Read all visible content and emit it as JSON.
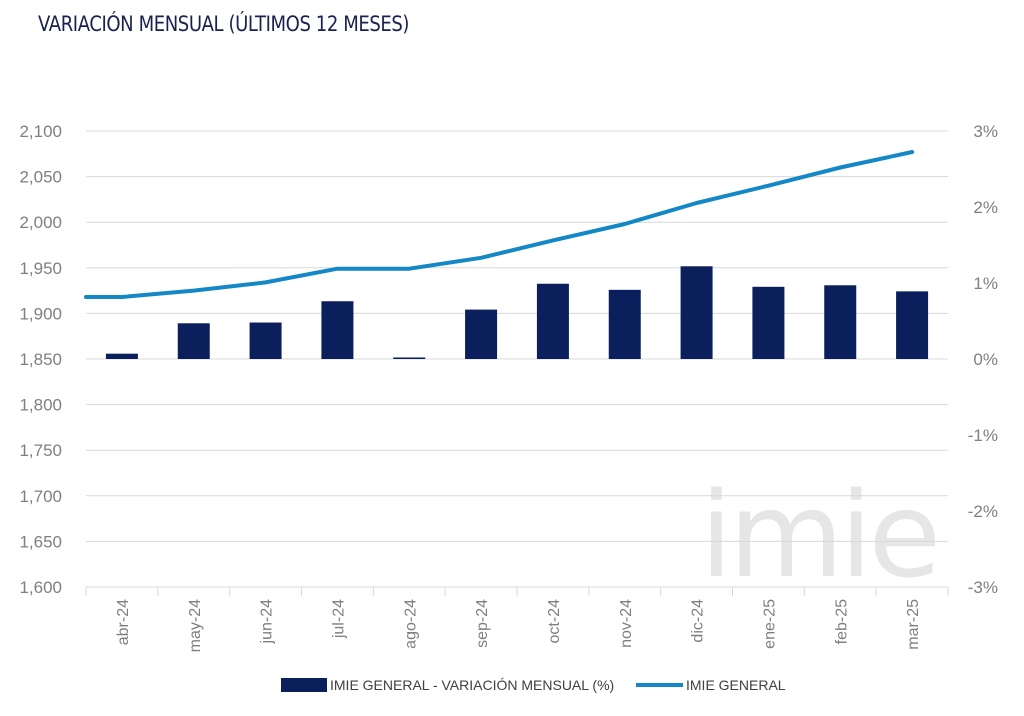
{
  "title": "VARIACIÓN MENSUAL (ÚLTIMOS 12 MESES)",
  "watermark_text": "imie",
  "colors": {
    "bar": "#0b1f5c",
    "line": "#1487c7",
    "grid": "#d9d9d9",
    "text": "#7f7f7f",
    "title": "#1a2150"
  },
  "chart_data": {
    "type": "bar",
    "title": "VARIACIÓN MENSUAL (ÚLTIMOS 12 MESES)",
    "categories": [
      "abr-24",
      "may-24",
      "jun-24",
      "jul-24",
      "ago-24",
      "sep-24",
      "oct-24",
      "nov-24",
      "dic-24",
      "ene-25",
      "feb-25",
      "mar-25"
    ],
    "series": [
      {
        "name": "IMIE GENERAL - VARIACIÓN MENSUAL (%)",
        "type": "bar",
        "axis": "right",
        "values": [
          0.07,
          0.47,
          0.48,
          0.76,
          0.02,
          0.65,
          0.99,
          0.91,
          1.22,
          0.95,
          0.97,
          0.89
        ]
      },
      {
        "name": "IMIE GENERAL",
        "type": "line",
        "axis": "left",
        "values": [
          1918,
          1925,
          1934,
          1949,
          1949,
          1961,
          1980,
          1998,
          2021,
          2040,
          2060,
          2077
        ]
      }
    ],
    "y_left": {
      "min": 1600,
      "max": 2100,
      "step": 50,
      "ticks": [
        "1,600",
        "1,650",
        "1,700",
        "1,750",
        "1,800",
        "1,850",
        "1,900",
        "1,950",
        "2,000",
        "2,050",
        "2,100"
      ]
    },
    "y_right": {
      "min": -3,
      "max": 3,
      "step": 1,
      "ticks": [
        "-3%",
        "-2%",
        "-1%",
        "0%",
        "1%",
        "2%",
        "3%"
      ]
    },
    "grid": true,
    "legend_position": "bottom"
  }
}
